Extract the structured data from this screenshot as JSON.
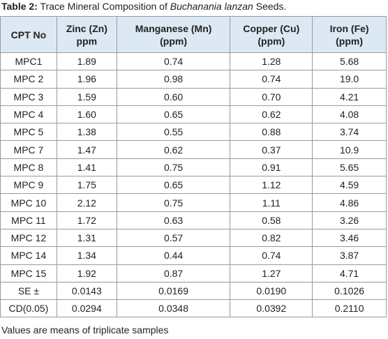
{
  "caption": {
    "label": "Table 2:",
    "text": " Trace Mineral Composition of ",
    "species": "Buchanania lanzan",
    "end": " Seeds."
  },
  "table": {
    "header": [
      [
        "CPT No"
      ],
      [
        "Zinc (Zn)",
        "ppm"
      ],
      [
        "Manganese (Mn)",
        "(ppm)"
      ],
      [
        "Copper (Cu)",
        "(ppm)"
      ],
      [
        "Iron (Fe)",
        "(ppm)"
      ]
    ],
    "rows": [
      [
        "MPC1",
        "1.89",
        "0.74",
        "1.28",
        "5.68"
      ],
      [
        "MPC 2",
        "1.96",
        "0.98",
        "0.74",
        "19.0"
      ],
      [
        "MPC 3",
        "1.59",
        "0.60",
        "0.70",
        "4.21"
      ],
      [
        "MPC 4",
        "1.60",
        "0.65",
        "0.62",
        "4.08"
      ],
      [
        "MPC 5",
        "1.38",
        "0.55",
        "0.88",
        "3.74"
      ],
      [
        "MPC 7",
        "1.47",
        "0.62",
        "0.37",
        "10.9"
      ],
      [
        "MPC 8",
        "1.41",
        "0.75",
        "0.91",
        "5.65"
      ],
      [
        "MPC 9",
        "1.75",
        "0.65",
        "1.12",
        "4.59"
      ],
      [
        "MPC 10",
        "2.12",
        "0.75",
        "1.11",
        "4.86"
      ],
      [
        "MPC 11",
        "1.72",
        "0.63",
        "0.58",
        "3.26"
      ],
      [
        "MPC 12",
        "1.31",
        "0.57",
        "0.82",
        "3.46"
      ],
      [
        "MPC 14",
        "1.34",
        "0.44",
        "0.74",
        "3.87"
      ],
      [
        "MPC 15",
        "1.92",
        "0.87",
        "1.27",
        "4.71"
      ],
      [
        "SE ±",
        "0.0143",
        "0.0169",
        "0.0190",
        "0.1026"
      ],
      [
        "CD(0.05)",
        "0.0294",
        "0.0348",
        "0.0392",
        "0.2110"
      ]
    ]
  },
  "footnote": "Values are means of triplicate samples"
}
